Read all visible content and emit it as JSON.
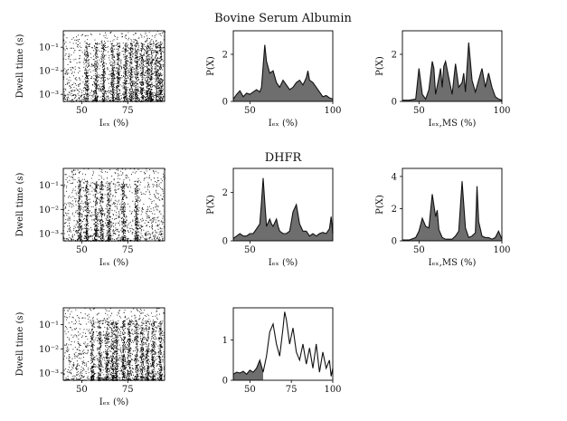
{
  "titles": {
    "bsa": "Bovine Serum Albumin",
    "dhfr": "DHFR"
  },
  "labels": {
    "dwell_y": "Dwell time (s)",
    "iex_x": "Iₑₓ (%)",
    "iex_ms_x": "Iₑₓ,MS (%)",
    "px_y": "P(X)"
  },
  "chart_data": [
    {
      "type": "scatter",
      "row": 1,
      "panel": "dwell",
      "xlabel": "Iₑₓ (%)",
      "ylabel": "Dwell time (s)",
      "xlim": [
        40,
        95
      ],
      "ylim": [
        0.0005,
        0.5
      ],
      "yscale": "log",
      "xticks": [
        50,
        75
      ],
      "yticks": [
        "10⁻³",
        "10⁻²",
        "10⁻¹"
      ],
      "clusters": [
        52,
        57,
        61,
        66,
        69,
        73,
        76,
        79,
        82,
        85,
        87,
        90,
        92
      ],
      "density": "high at short dwell times, sparse above 10⁻¹"
    },
    {
      "type": "area",
      "row": 1,
      "panel": "pdf",
      "xlabel": "Iₑₓ (%)",
      "ylabel": "P(X)",
      "xlim": [
        40,
        100
      ],
      "ylim": [
        0,
        3
      ],
      "xticks": [
        50,
        100
      ],
      "yticks": [
        0,
        2
      ],
      "x": [
        40,
        42,
        44,
        46,
        48,
        50,
        52,
        54,
        56,
        57,
        58,
        59,
        60,
        62,
        64,
        66,
        68,
        70,
        72,
        74,
        76,
        78,
        80,
        82,
        84,
        85,
        86,
        88,
        90,
        92,
        94,
        96,
        98,
        100
      ],
      "values": [
        0.1,
        0.3,
        0.45,
        0.2,
        0.35,
        0.3,
        0.4,
        0.5,
        0.4,
        0.6,
        1.5,
        2.4,
        1.7,
        1.2,
        1.3,
        0.8,
        0.6,
        0.9,
        0.7,
        0.5,
        0.6,
        0.8,
        0.9,
        0.7,
        1.0,
        1.3,
        0.9,
        0.8,
        0.6,
        0.4,
        0.2,
        0.25,
        0.15,
        0.1
      ]
    },
    {
      "type": "area",
      "row": 1,
      "panel": "pdf_ms",
      "xlabel": "Iₑₓ,MS (%)",
      "ylabel": "P(X)",
      "xlim": [
        40,
        100
      ],
      "ylim": [
        0,
        3
      ],
      "xticks": [
        50,
        100
      ],
      "yticks": [
        0,
        2
      ],
      "x": [
        40,
        44,
        48,
        50,
        52,
        54,
        56,
        58,
        59,
        60,
        62,
        63,
        64,
        65,
        66,
        68,
        70,
        72,
        74,
        76,
        77,
        78,
        80,
        82,
        84,
        86,
        88,
        90,
        92,
        94,
        96,
        98,
        100
      ],
      "values": [
        0.05,
        0.05,
        0.1,
        1.4,
        0.3,
        0.1,
        0.5,
        1.7,
        1.4,
        0.3,
        1.0,
        1.4,
        0.6,
        1.5,
        1.7,
        1.0,
        0.3,
        1.6,
        0.6,
        0.8,
        1.2,
        0.4,
        2.5,
        0.9,
        0.4,
        0.9,
        1.4,
        0.6,
        1.2,
        0.6,
        0.2,
        0.1,
        0.05
      ]
    },
    {
      "type": "scatter",
      "row": 2,
      "panel": "dwell",
      "xlabel": "Iₑₓ (%)",
      "ylabel": "Dwell time (s)",
      "xlim": [
        40,
        95
      ],
      "ylim": [
        0.0005,
        0.5
      ],
      "yscale": "log",
      "xticks": [
        50,
        75
      ],
      "yticks": [
        "10⁻³",
        "10⁻²",
        "10⁻¹"
      ],
      "clusters": [
        48,
        52,
        57,
        60,
        64,
        72,
        79
      ],
      "density": "diffuse background across all intensities"
    },
    {
      "type": "area",
      "row": 2,
      "panel": "pdf",
      "xlabel": "Iₑₓ (%)",
      "ylabel": "P(X)",
      "xlim": [
        40,
        100
      ],
      "ylim": [
        0,
        3
      ],
      "xticks": [
        50
      ],
      "yticks": [
        0,
        2
      ],
      "x": [
        40,
        42,
        44,
        46,
        48,
        50,
        52,
        54,
        56,
        57,
        58,
        59,
        60,
        62,
        63,
        64,
        66,
        67,
        68,
        70,
        72,
        74,
        75,
        76,
        78,
        80,
        82,
        84,
        86,
        88,
        90,
        92,
        94,
        96,
        98,
        99,
        100
      ],
      "values": [
        0.1,
        0.2,
        0.3,
        0.2,
        0.2,
        0.3,
        0.3,
        0.5,
        0.7,
        1.6,
        2.6,
        1.6,
        0.6,
        0.9,
        0.7,
        0.6,
        0.9,
        0.6,
        0.4,
        0.3,
        0.3,
        0.4,
        0.8,
        1.2,
        1.5,
        0.7,
        0.4,
        0.4,
        0.2,
        0.3,
        0.2,
        0.3,
        0.35,
        0.3,
        0.5,
        1.0,
        0.3
      ]
    },
    {
      "type": "area",
      "row": 2,
      "panel": "pdf_ms",
      "xlabel": "Iₑₓ,MS (%)",
      "ylabel": "P(X)",
      "xlim": [
        40,
        100
      ],
      "ylim": [
        0,
        4.5
      ],
      "xticks": [
        50,
        100
      ],
      "yticks": [
        0,
        2,
        4
      ],
      "x": [
        40,
        44,
        48,
        50,
        52,
        54,
        56,
        58,
        60,
        61,
        62,
        64,
        66,
        68,
        70,
        72,
        74,
        76,
        78,
        80,
        82,
        84,
        85,
        86,
        88,
        90,
        92,
        94,
        96,
        98,
        100
      ],
      "values": [
        0.05,
        0.05,
        0.2,
        0.6,
        1.4,
        0.9,
        0.8,
        2.9,
        1.5,
        1.9,
        0.7,
        0.2,
        0.1,
        0.1,
        0.1,
        0.3,
        0.6,
        3.7,
        0.8,
        0.2,
        0.3,
        0.5,
        3.4,
        1.2,
        0.3,
        0.2,
        0.2,
        0.1,
        0.2,
        0.6,
        0.1
      ]
    },
    {
      "type": "scatter",
      "row": 3,
      "panel": "dwell",
      "xlabel": "Iₑₓ (%)",
      "ylabel": "Dwell time (s)",
      "xlim": [
        40,
        95
      ],
      "ylim": [
        0.0005,
        0.5
      ],
      "yscale": "log",
      "xticks": [
        50,
        75
      ],
      "yticks": [
        "10⁻³",
        "10⁻²",
        "10⁻¹"
      ],
      "clusters": [
        55,
        59,
        63,
        66,
        68,
        72,
        75,
        79,
        82,
        85,
        88,
        92
      ],
      "density": "dense bands between 60 and 80"
    },
    {
      "type": "line",
      "row": 3,
      "panel": "pdf",
      "xlabel": "",
      "ylabel": "",
      "xlim": [
        40,
        100
      ],
      "ylim": [
        0,
        1.8
      ],
      "xticks": [
        50,
        75,
        100
      ],
      "yticks": [
        0,
        1
      ],
      "shaded_until_x": 58,
      "x": [
        40,
        42,
        44,
        46,
        48,
        50,
        52,
        54,
        56,
        58,
        60,
        62,
        64,
        66,
        68,
        70,
        71,
        72,
        74,
        76,
        78,
        80,
        82,
        84,
        86,
        88,
        90,
        92,
        94,
        96,
        98,
        99,
        100
      ],
      "values": [
        0.15,
        0.2,
        0.18,
        0.22,
        0.15,
        0.25,
        0.2,
        0.3,
        0.5,
        0.2,
        0.6,
        1.2,
        1.4,
        0.9,
        0.6,
        1.3,
        1.7,
        1.5,
        0.9,
        1.3,
        0.7,
        0.5,
        0.9,
        0.4,
        0.8,
        0.3,
        0.9,
        0.2,
        0.7,
        0.3,
        0.5,
        0.1,
        0.3
      ]
    }
  ]
}
